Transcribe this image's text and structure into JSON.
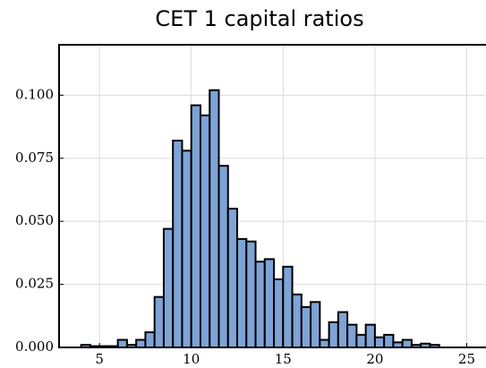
{
  "chart_data": {
    "type": "histogram",
    "title": "CET 1 capital ratios",
    "bins": [
      4.0,
      4.5,
      5.0,
      5.5,
      6.0,
      6.5,
      7.0,
      7.5,
      8.0,
      8.5,
      9.0,
      9.5,
      10.0,
      10.5,
      11.0,
      11.5,
      12.0,
      12.5,
      13.0,
      13.5,
      14.0,
      14.5,
      15.0,
      15.5,
      16.0,
      16.5,
      17.0,
      17.5,
      18.0,
      18.5,
      19.0,
      19.5,
      20.0,
      20.5,
      21.0,
      21.5,
      22.0,
      22.5,
      23.0,
      23.5
    ],
    "counts": [
      0.001,
      0.0005,
      0.0005,
      0.0005,
      0.003,
      0.001,
      0.003,
      0.006,
      0.02,
      0.047,
      0.082,
      0.078,
      0.096,
      0.092,
      0.102,
      0.072,
      0.055,
      0.043,
      0.042,
      0.034,
      0.035,
      0.027,
      0.032,
      0.021,
      0.016,
      0.018,
      0.003,
      0.01,
      0.014,
      0.009,
      0.005,
      0.009,
      0.004,
      0.005,
      0.002,
      0.003,
      0.001,
      0.0015,
      0.001
    ],
    "color": "#7ea3d6",
    "edgecolor": "#000000",
    "xlim": [
      2.8,
      26.0
    ],
    "xticks": [
      5,
      10,
      15,
      20,
      25
    ],
    "ylim": [
      0,
      0.12
    ],
    "yticks": [
      {
        "value": 0,
        "label": "0.000"
      },
      {
        "value": 0.025,
        "label": "0.025"
      },
      {
        "value": 0.05,
        "label": "0.050"
      },
      {
        "value": 0.075,
        "label": "0.075"
      },
      {
        "value": 0.1,
        "label": "0.100"
      }
    ],
    "grid": true
  }
}
